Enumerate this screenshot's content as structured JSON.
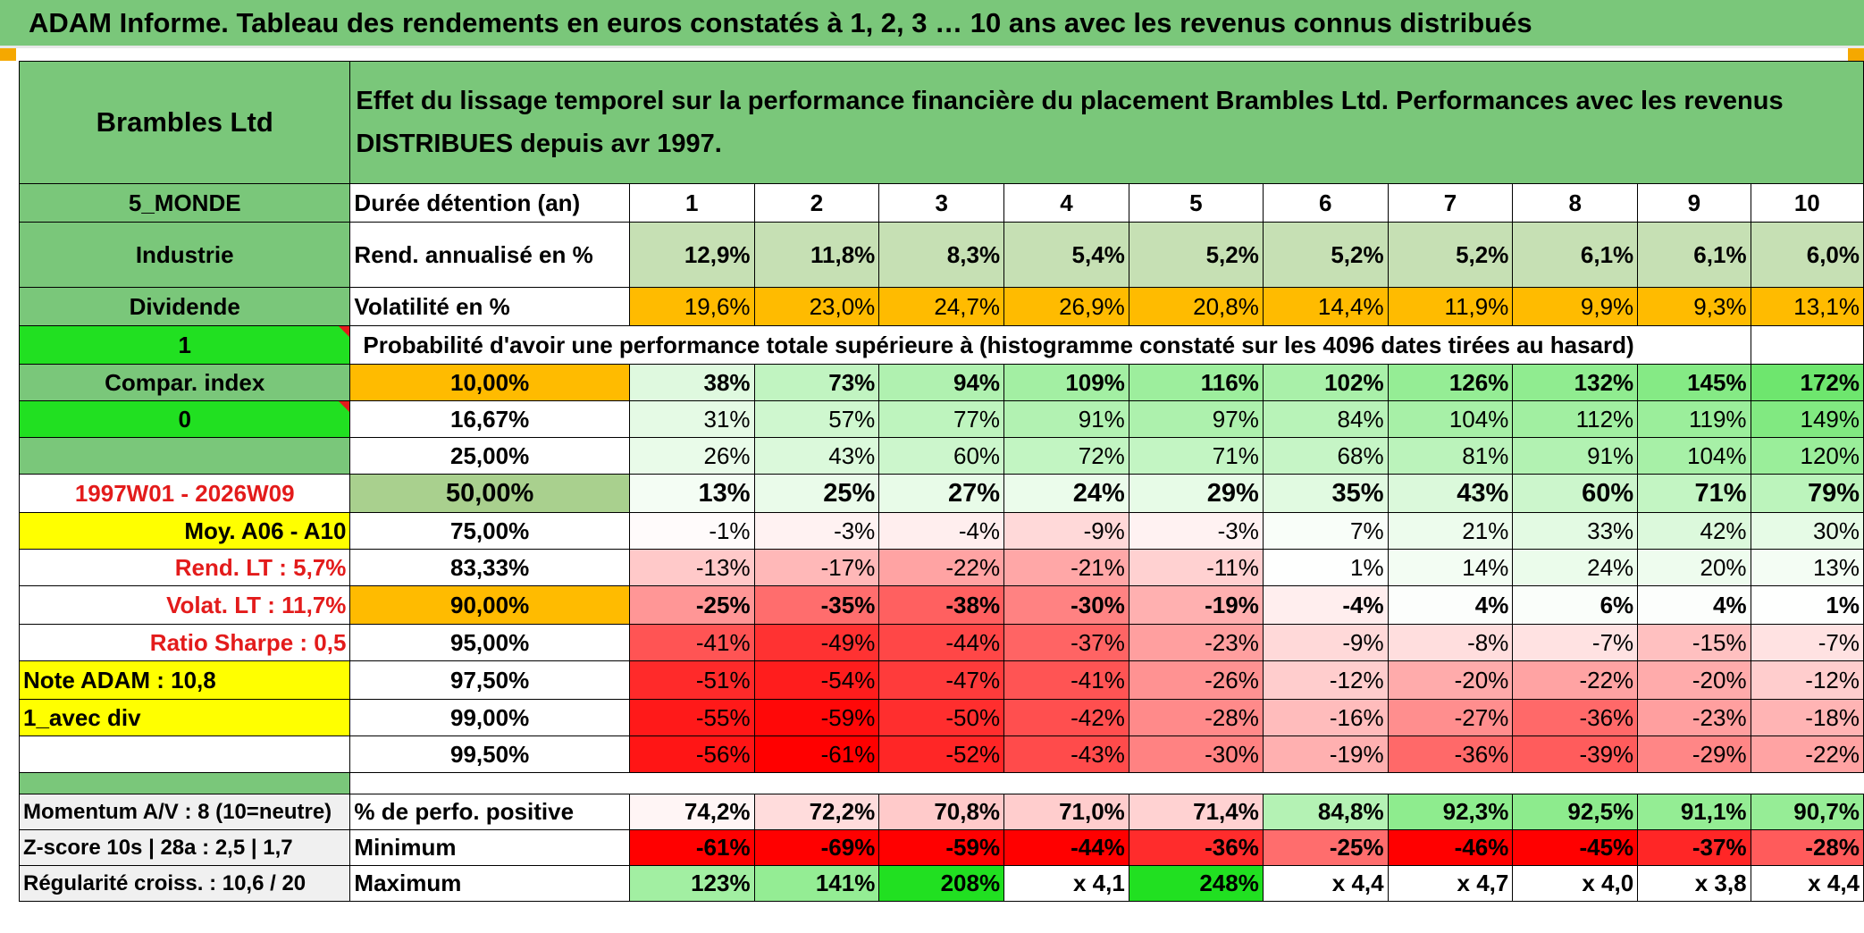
{
  "title": "ADAM Informe. Tableau des rendements en euros constatés à 1, 2, 3 … 10 ans avec les revenus connus distribués",
  "left_panel": {
    "company": "Brambles Ltd",
    "region": "5_MONDE",
    "sector": "Industrie",
    "dividend": "Dividende",
    "flag1": "1",
    "compar_index": "Compar. index",
    "flag0": "0",
    "period": "1997W01 - 2026W09",
    "moy": "Moy. A06 - A10",
    "rend_lt": "Rend. LT :   5,7%",
    "volat_lt": "Volat. LT :   11,7%",
    "sharpe": "Ratio Sharpe :    0,5",
    "note": "Note ADAM : 10,8",
    "avec_div": "1_avec div",
    "momentum": "Momentum A/V : 8 (10=neutre)",
    "zscore": "Z-score 10s | 28a : 2,5 | 1,7",
    "regularite": "Régularité croiss. : 10,6 / 20"
  },
  "header_text": "Effet du lissage temporel sur la performance financière du placement Brambles Ltd. Performances avec les revenus DISTRIBUES depuis avr 1997.",
  "duration_label": "Durée détention (an)",
  "years": [
    "1",
    "2",
    "3",
    "4",
    "5",
    "6",
    "7",
    "8",
    "9",
    "10"
  ],
  "rend_label": "Rend. annualisé en %",
  "rend": [
    "12,9%",
    "11,8%",
    "8,3%",
    "5,4%",
    "5,2%",
    "5,2%",
    "5,2%",
    "6,1%",
    "6,1%",
    "6,0%"
  ],
  "vol_label": "Volatilité en %",
  "vol": [
    "19,6%",
    "23,0%",
    "24,7%",
    "26,9%",
    "20,8%",
    "14,4%",
    "11,9%",
    "9,9%",
    "9,3%",
    "13,1%"
  ],
  "prob_title": "Probabilité d'avoir une performance totale supérieure à (histogramme constaté sur les 4096 dates tirées au hasard)",
  "prob_rows": [
    {
      "level": "10,00%",
      "values": [
        "38%",
        "73%",
        "94%",
        "109%",
        "116%",
        "102%",
        "126%",
        "132%",
        "145%",
        "172%"
      ]
    },
    {
      "level": "16,67%",
      "values": [
        "31%",
        "57%",
        "77%",
        "91%",
        "97%",
        "84%",
        "104%",
        "112%",
        "119%",
        "149%"
      ]
    },
    {
      "level": "25,00%",
      "values": [
        "26%",
        "43%",
        "60%",
        "72%",
        "71%",
        "68%",
        "81%",
        "91%",
        "104%",
        "120%"
      ]
    },
    {
      "level": "50,00%",
      "values": [
        "13%",
        "25%",
        "27%",
        "24%",
        "29%",
        "35%",
        "43%",
        "60%",
        "71%",
        "79%"
      ]
    },
    {
      "level": "75,00%",
      "values": [
        "-1%",
        "-3%",
        "-4%",
        "-9%",
        "-3%",
        "7%",
        "21%",
        "33%",
        "42%",
        "30%"
      ]
    },
    {
      "level": "83,33%",
      "values": [
        "-13%",
        "-17%",
        "-22%",
        "-21%",
        "-11%",
        "1%",
        "14%",
        "24%",
        "20%",
        "13%"
      ]
    },
    {
      "level": "90,00%",
      "values": [
        "-25%",
        "-35%",
        "-38%",
        "-30%",
        "-19%",
        "-4%",
        "4%",
        "6%",
        "4%",
        "1%"
      ]
    },
    {
      "level": "95,00%",
      "values": [
        "-41%",
        "-49%",
        "-44%",
        "-37%",
        "-23%",
        "-9%",
        "-8%",
        "-7%",
        "-15%",
        "-7%"
      ]
    },
    {
      "level": "97,50%",
      "values": [
        "-51%",
        "-54%",
        "-47%",
        "-41%",
        "-26%",
        "-12%",
        "-20%",
        "-22%",
        "-20%",
        "-12%"
      ]
    },
    {
      "level": "99,00%",
      "values": [
        "-55%",
        "-59%",
        "-50%",
        "-42%",
        "-28%",
        "-16%",
        "-27%",
        "-36%",
        "-23%",
        "-18%"
      ]
    },
    {
      "level": "99,50%",
      "values": [
        "-56%",
        "-61%",
        "-52%",
        "-43%",
        "-30%",
        "-19%",
        "-36%",
        "-39%",
        "-29%",
        "-22%"
      ]
    }
  ],
  "positive_label": "% de perfo. positive",
  "positive": [
    "74,2%",
    "72,2%",
    "70,8%",
    "71,0%",
    "71,4%",
    "84,8%",
    "92,3%",
    "92,5%",
    "91,1%",
    "90,7%"
  ],
  "min_label": "Minimum",
  "minimum": [
    "-61%",
    "-69%",
    "-59%",
    "-44%",
    "-36%",
    "-25%",
    "-46%",
    "-45%",
    "-37%",
    "-28%"
  ],
  "max_label": "Maximum",
  "maximum": [
    "123%",
    "141%",
    "208%",
    "x 4,1",
    "248%",
    "x 4,4",
    "x 4,7",
    "x 4,0",
    "x 3,8",
    "x 4,4"
  ],
  "colors": {
    "title_green": "#7ac77a",
    "bright_green": "#21e021",
    "orange": "#ffbb00",
    "yellow": "#ffff00",
    "red_text": "#e31b1b"
  }
}
